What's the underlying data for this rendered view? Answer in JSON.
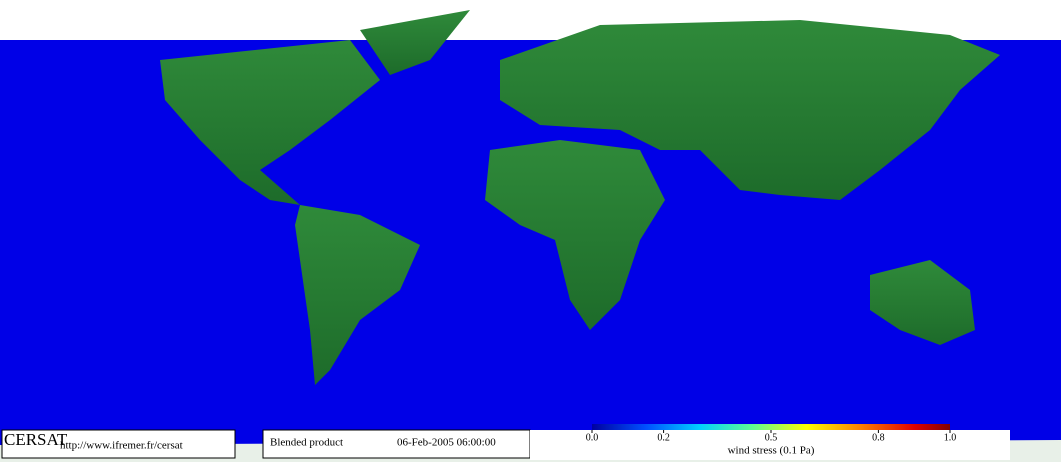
{
  "header": {
    "org": "CERSAT",
    "url": "http://www.ifremer.fr/cersat",
    "product": "Blended product",
    "datetime": "06-Feb-2005 06:00:00"
  },
  "colorbar": {
    "label": "wind stress (0.1 Pa)",
    "range": [
      0,
      1
    ],
    "ticks": [
      {
        "value": 0,
        "label": "0.0"
      },
      {
        "value": 0.2,
        "label": "0.2"
      },
      {
        "value": 0.5,
        "label": "0.5"
      },
      {
        "value": 0.8,
        "label": "0.8"
      },
      {
        "value": 1,
        "label": "1.0"
      }
    ]
  }
}
